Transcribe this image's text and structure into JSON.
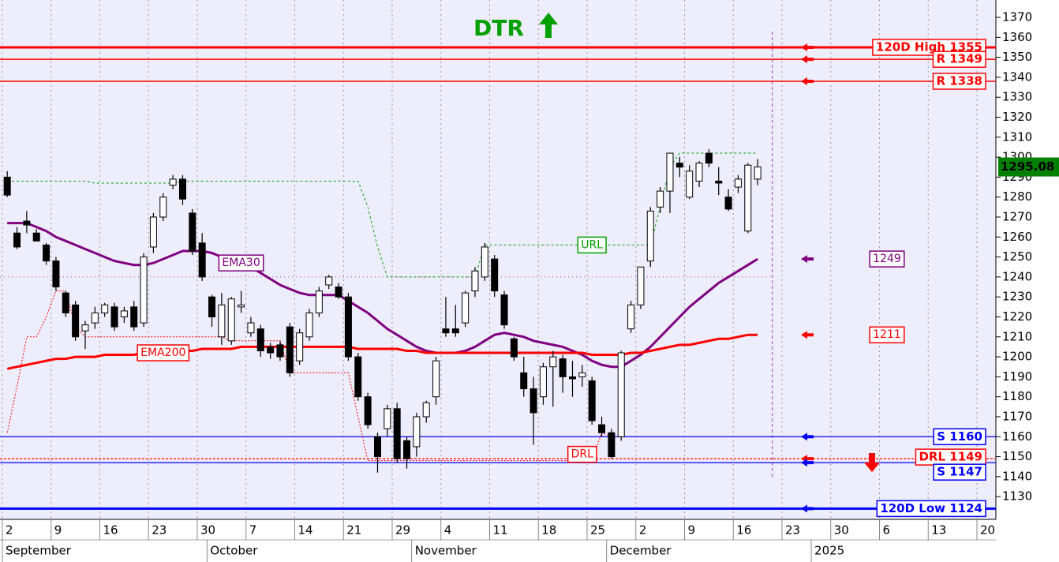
{
  "chart_data": {
    "type": "candlestick",
    "title": "DTR",
    "categories": [
      "2",
      null,
      null,
      null,
      null,
      "9",
      null,
      null,
      null,
      null,
      "16",
      null,
      null,
      null,
      null,
      "23",
      null,
      null,
      null,
      null,
      "30",
      null,
      null,
      null,
      null,
      "7",
      null,
      null,
      null,
      null,
      "14",
      null,
      null,
      null,
      null,
      "21",
      null,
      null,
      null,
      null,
      "29",
      null,
      null,
      null,
      null,
      "4",
      null,
      null,
      null,
      null,
      "11",
      null,
      null,
      null,
      null,
      "18",
      null,
      null,
      null,
      null,
      "25",
      null,
      null,
      null,
      null,
      "2",
      null,
      null,
      null,
      null,
      "9",
      null,
      null,
      null,
      null,
      "16",
      null,
      null,
      null,
      null,
      "23",
      null,
      null,
      null,
      null,
      "30",
      null,
      null,
      null,
      null,
      "6",
      null,
      null,
      null,
      null,
      "13",
      null,
      null,
      null,
      null,
      "20"
    ],
    "months": [
      "September",
      null,
      null,
      null,
      null,
      null,
      null,
      null,
      null,
      null,
      null,
      null,
      null,
      null,
      null,
      null,
      null,
      null,
      null,
      null,
      null,
      "October",
      null,
      null,
      null,
      null,
      null,
      null,
      null,
      null,
      null,
      null,
      null,
      null,
      null,
      null,
      null,
      null,
      null,
      null,
      null,
      null,
      "November",
      null,
      null,
      null,
      null,
      null,
      null,
      null,
      null,
      null,
      null,
      null,
      null,
      null,
      null,
      null,
      null,
      null,
      null,
      null,
      "December",
      null,
      null,
      null,
      null,
      null,
      null,
      null,
      null,
      null,
      null,
      null,
      null,
      null,
      null,
      null,
      null,
      null,
      null,
      null,
      null,
      "2025",
      null,
      null,
      null,
      null,
      null,
      null,
      null,
      null,
      null,
      null,
      null,
      null,
      null,
      null
    ],
    "open": [
      1290,
      1262,
      1268,
      1262,
      1256,
      1248,
      1232,
      1226,
      1213,
      1217,
      1222,
      1225,
      1220,
      1225,
      1217,
      1255,
      1270,
      1286,
      1289,
      1272,
      1257,
      1230,
      1210,
      1208,
      1225,
      1212,
      1214,
      1205,
      1206,
      1215,
      1198,
      1210,
      1222,
      1236,
      1235,
      1230,
      1200,
      1180,
      1160,
      1164,
      1174,
      1158,
      1155,
      1170,
      1180,
      1214,
      1214,
      1217,
      1233,
      1240,
      1249,
      1231,
      1209,
      1192,
      1184,
      1180,
      1195,
      1199,
      1190,
      1190,
      1188,
      1166,
      1162,
      1160,
      1214,
      1226,
      1248,
      1275,
      1283,
      1297,
      1280,
      1288,
      1302,
      1288,
      1280,
      1285,
      1263,
      1289,
      null,
      null,
      null,
      null,
      null,
      null,
      null,
      null,
      null,
      null,
      null,
      null,
      null,
      null,
      null,
      null,
      null,
      null,
      null,
      null,
      null,
      null,
      null
    ],
    "high": [
      1293,
      1265,
      1273,
      1264,
      1257,
      1250,
      1233,
      1228,
      1218,
      1225,
      1227,
      1227,
      1225,
      1228,
      1252,
      1272,
      1282,
      1291,
      1291,
      1274,
      1262,
      1231,
      1232,
      1230,
      1233,
      1220,
      1216,
      1207,
      1208,
      1217,
      1214,
      1224,
      1235,
      1241,
      1237,
      1232,
      1202,
      1182,
      1162,
      1176,
      1177,
      1160,
      1172,
      1178,
      1200,
      1230,
      1226,
      1233,
      1245,
      1257,
      1251,
      1233,
      1210,
      1200,
      1190,
      1197,
      1203,
      1201,
      1198,
      1196,
      1190,
      1170,
      1164,
      1203,
      1228,
      1245,
      1275,
      1285,
      1302,
      1300,
      1296,
      1298,
      1304,
      1295,
      1284,
      1291,
      1297,
      1299,
      null,
      null,
      null,
      null,
      null,
      null,
      null,
      null,
      null,
      null,
      null,
      null,
      null,
      null,
      null,
      null,
      null,
      null,
      null,
      null,
      null,
      null,
      null
    ],
    "low": [
      1280,
      1254,
      1262,
      1258,
      1246,
      1233,
      1220,
      1208,
      1204,
      1214,
      1220,
      1213,
      1217,
      1213,
      1215,
      1252,
      1268,
      1284,
      1276,
      1251,
      1238,
      1215,
      1206,
      1206,
      1222,
      1210,
      1200,
      1199,
      1198,
      1190,
      1196,
      1208,
      1220,
      1234,
      1229,
      1198,
      1178,
      1164,
      1142,
      1160,
      1147,
      1144,
      1150,
      1167,
      1176,
      1210,
      1210,
      1215,
      1230,
      1238,
      1230,
      1214,
      1198,
      1180,
      1156,
      1176,
      1175,
      1182,
      1180,
      1185,
      1166,
      1160,
      1149,
      1158,
      1212,
      1224,
      1245,
      1272,
      1272,
      1290,
      1279,
      1285,
      1295,
      1281,
      1273,
      1282,
      1262,
      1286,
      null,
      null,
      null,
      null,
      null,
      null,
      null,
      null,
      null,
      null,
      null,
      null,
      null,
      null,
      null,
      null,
      null,
      null,
      null,
      null,
      null,
      null,
      null
    ],
    "close": [
      1281,
      1255,
      1266,
      1258,
      1248,
      1235,
      1222,
      1210,
      1216,
      1222,
      1226,
      1215,
      1223,
      1215,
      1250,
      1270,
      1280,
      1289,
      1279,
      1253,
      1240,
      1220,
      1226,
      1229,
      1226,
      1217,
      1203,
      1202,
      1200,
      1192,
      1212,
      1222,
      1233,
      1240,
      1230,
      1200,
      1180,
      1166,
      1150,
      1174,
      1149,
      1149,
      1170,
      1177,
      1198,
      1212,
      1212,
      1232,
      1243,
      1255,
      1233,
      1216,
      1200,
      1184,
      1172,
      1195,
      1200,
      1190,
      1189,
      1192,
      1168,
      1162,
      1150,
      1202,
      1226,
      1245,
      1273,
      1283,
      1302,
      1295,
      1293,
      1297,
      1297,
      1287,
      1274,
      1289,
      1296,
      1295.08,
      null,
      null,
      null,
      null,
      null,
      null,
      null,
      null,
      null,
      null,
      null,
      null,
      null,
      null,
      null,
      null,
      null,
      null,
      null,
      null,
      null,
      null,
      null
    ],
    "series": [
      {
        "name": "EMA30",
        "color": "#800080",
        "width": 3,
        "values": [
          1267,
          1267,
          1267,
          1265,
          1263,
          1260,
          1258,
          1256,
          1254,
          1252,
          1250,
          1248,
          1247,
          1246,
          1246,
          1247,
          1249,
          1251,
          1253,
          1253,
          1253,
          1252,
          1250,
          1249,
          1247,
          1245,
          1242,
          1239,
          1236,
          1234,
          1232,
          1231,
          1231,
          1231,
          1231,
          1228,
          1225,
          1222,
          1218,
          1214,
          1211,
          1208,
          1205,
          1203,
          1202,
          1202,
          1202,
          1203,
          1205,
          1208,
          1211,
          1212,
          1211,
          1210,
          1208,
          1207,
          1206,
          1205,
          1203,
          1201,
          1198,
          1196,
          1195,
          1195,
          1198,
          1201,
          1205,
          1210,
          1215,
          1220,
          1225,
          1229,
          1233,
          1237,
          1240,
          1243,
          1246,
          1249,
          null,
          null,
          null,
          null,
          null,
          null,
          null,
          null,
          null,
          null,
          null,
          null,
          null,
          null,
          null,
          null,
          null,
          null,
          null,
          null,
          null,
          null,
          null
        ]
      },
      {
        "name": "EMA200",
        "color": "#ff0000",
        "width": 3,
        "values": [
          1194,
          1195,
          1196,
          1197,
          1198,
          1199,
          1199,
          1200,
          1200,
          1200,
          1201,
          1201,
          1201,
          1201,
          1202,
          1202,
          1202,
          1203,
          1203,
          1203,
          1204,
          1204,
          1204,
          1204,
          1205,
          1205,
          1205,
          1205,
          1205,
          1205,
          1205,
          1205,
          1205,
          1205,
          1205,
          1205,
          1204,
          1204,
          1204,
          1204,
          1204,
          1203,
          1203,
          1202,
          1202,
          1202,
          1202,
          1202,
          1202,
          1202,
          1202,
          1202,
          1202,
          1202,
          1202,
          1202,
          1202,
          1202,
          1202,
          1202,
          1201,
          1201,
          1201,
          1201,
          1202,
          1202,
          1203,
          1204,
          1205,
          1206,
          1206,
          1207,
          1208,
          1209,
          1209,
          1210,
          1211,
          1211,
          null,
          null,
          null,
          null,
          null,
          null,
          null,
          null,
          null,
          null,
          null,
          null,
          null,
          null,
          null,
          null,
          null,
          null,
          null,
          null,
          null,
          null,
          null
        ]
      },
      {
        "name": "URL",
        "color": "#00a000",
        "width": 1,
        "dash": "3 3",
        "values": [
          1288,
          1288,
          1288,
          1288,
          1288,
          1288,
          1288,
          1288,
          1288,
          1287,
          1287,
          1287,
          1287,
          1287,
          1287,
          1287,
          1287,
          1287,
          1288,
          1288,
          1288,
          1288,
          1288,
          1288,
          1288,
          1288,
          1288,
          1288,
          1288,
          1288,
          1288,
          1288,
          1288,
          1288,
          1288,
          1288,
          1288,
          1275,
          1255,
          1240,
          1240,
          1240,
          1240,
          1240,
          1240,
          1240,
          1240,
          1240,
          1240,
          1256,
          1256,
          1256,
          1256,
          1256,
          1256,
          1256,
          1256,
          1256,
          1256,
          1256,
          1256,
          1256,
          1256,
          1256,
          1256,
          1256,
          1256,
          1275,
          1295,
          1302,
          1302,
          1302,
          1302,
          1302,
          1302,
          1302,
          1302,
          1302,
          null,
          null,
          null,
          null,
          null,
          null,
          null,
          null,
          null,
          null,
          null,
          null,
          null,
          null,
          null,
          null,
          null,
          null,
          null,
          null,
          null,
          null,
          null
        ]
      },
      {
        "name": "DRL",
        "color": "#ff0000",
        "width": 1,
        "dash": "2 2",
        "values": [
          1162,
          1185,
          1210,
          1210,
          1220,
          1233,
          1233,
          1215,
          1210,
          1210,
          1210,
          1210,
          1210,
          1210,
          1210,
          1210,
          1210,
          1210,
          1210,
          1210,
          1210,
          1210,
          1210,
          1208,
          1208,
          1208,
          1208,
          1208,
          1208,
          1192,
          1192,
          1192,
          1192,
          1192,
          1192,
          1192,
          1170,
          1148,
          1148,
          1148,
          1148,
          1148,
          1148,
          1148,
          1148,
          1148,
          1148,
          1148,
          1148,
          1148,
          1148,
          1148,
          1148,
          1148,
          1148,
          1148,
          1148,
          1148,
          1148,
          1148,
          1148,
          1162,
          1160,
          null,
          null,
          null,
          null,
          null,
          null,
          null,
          null,
          null,
          null,
          null,
          null,
          null,
          null,
          null,
          null,
          null,
          null,
          null,
          null,
          null,
          null,
          null,
          null,
          null,
          null,
          null,
          null,
          null,
          null,
          null,
          null,
          null,
          null,
          null,
          null,
          null,
          null
        ]
      }
    ],
    "levels": [
      {
        "label": "120D High 1355",
        "value": 1355,
        "color": "#ff0000",
        "width": 3
      },
      {
        "label": "R 1349",
        "value": 1349,
        "color": "#ff0000",
        "width": 1.5
      },
      {
        "label": "R 1338",
        "value": 1338,
        "color": "#ff0000",
        "width": 1.5
      },
      {
        "label": "S 1160",
        "value": 1160,
        "color": "#0000ff",
        "width": 1.2
      },
      {
        "label": "DRL 1149",
        "value": 1149,
        "color": "#ff0000",
        "width": 1.2,
        "dash": "3 2"
      },
      {
        "label": "S 1147",
        "value": 1147,
        "color": "#0000ff",
        "width": 1.2
      },
      {
        "label": "120D Low 1124",
        "value": 1124,
        "color": "#0000ff",
        "width": 3
      }
    ],
    "markers": [
      {
        "value": 1249,
        "color": "#800080"
      },
      {
        "value": 1211,
        "color": "#ff0000"
      }
    ],
    "reference_level": 1240,
    "ylim": [
      1118.6,
      1378.7
    ],
    "yticks": [
      1130,
      1140,
      1150,
      1160,
      1170,
      1180,
      1190,
      1200,
      1210,
      1220,
      1230,
      1240,
      1250,
      1260,
      1270,
      1280,
      1290,
      1300,
      1310,
      1320,
      1330,
      1340,
      1350,
      1360,
      1370
    ]
  }
}
